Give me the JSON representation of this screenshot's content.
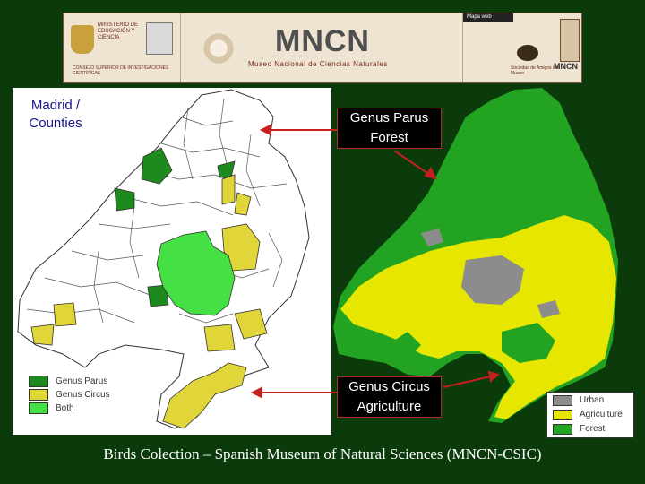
{
  "banner": {
    "gov_text": "MINISTERIO DE EDUCACIÓN Y CIENCIA",
    "csic_text": "CONSEJO SUPERIOR DE INVESTIGACIONES CIENTÍFICAS",
    "mncn_logo": "MNCN",
    "mncn_subtitle": "Museo Nacional de Ciencias Naturales",
    "mapaweb": "Mapa web",
    "society_text": "Sociedad de Amigos del Museo",
    "mncn_small": "MNCN"
  },
  "labels": {
    "madrid": "Madrid / Counties",
    "parus_title": "Genus Parus",
    "parus_sub": "Forest",
    "circus_title": "Genus Circus",
    "circus_sub": "Agriculture"
  },
  "left_legend": [
    {
      "label": "Genus Parus",
      "color": "#1e8a1e"
    },
    {
      "label": "Genus Circus",
      "color": "#e0d63a"
    },
    {
      "label": "Both",
      "color": "#44e044"
    }
  ],
  "right_legend": [
    {
      "label": "Urban",
      "color": "#8c8c8c"
    },
    {
      "label": "Agriculture",
      "color": "#e6e600"
    },
    {
      "label": "Forest",
      "color": "#22a422"
    }
  ],
  "footer": "Birds Colection – Spanish Museum of Natural Sciences (MNCN-CSIC)",
  "colors": {
    "background": "#0b3a0b",
    "arrow": "#c42020"
  }
}
